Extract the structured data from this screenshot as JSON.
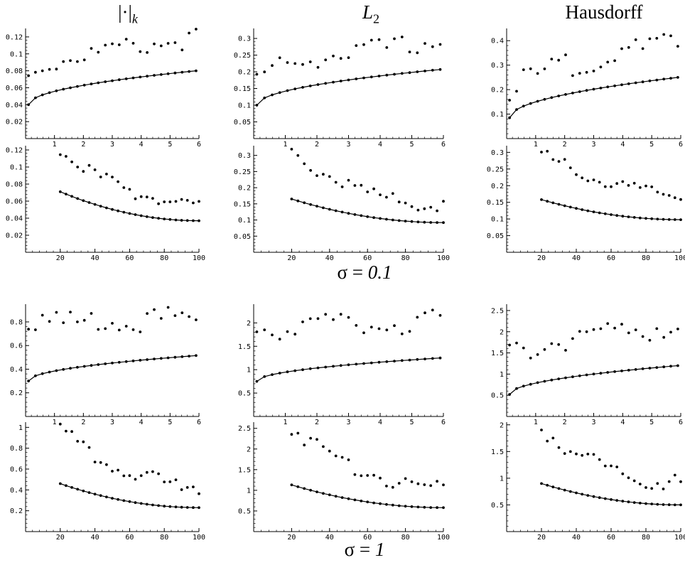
{
  "headings": {
    "col1_prefix": "|·|",
    "col1_sub": "k",
    "col2_prefix": "L",
    "col2_sub": "2",
    "col3": "Hausdorff"
  },
  "sigma_labels": [
    {
      "symbol": "σ = ",
      "value": "0.1"
    },
    {
      "symbol": "σ = ",
      "value": "1"
    }
  ],
  "chart_data": [
    {
      "type": "scatter",
      "panel": "sigma0.1-norm-k-top",
      "xlim": [
        0,
        6
      ],
      "ylim": [
        0,
        0.13
      ],
      "xticks": [
        1,
        2,
        3,
        4,
        5,
        6
      ],
      "yticks": [
        0.02,
        0.04,
        0.06,
        0.08,
        0.1,
        0.12
      ],
      "yticklabels": [
        "0.02",
        "0.04",
        "0.06",
        "0.08",
        "0.1",
        "0.12"
      ],
      "series": [
        {
          "style": "dots",
          "y0": 0.078,
          "y1": 0.124,
          "noise": 0.006
        },
        {
          "style": "line-dots",
          "y0": 0.04,
          "y1": 0.08
        }
      ]
    },
    {
      "type": "scatter",
      "panel": "sigma0.1-L2-top",
      "xlim": [
        0,
        6
      ],
      "ylim": [
        0,
        0.33
      ],
      "xticks": [
        1,
        2,
        3,
        4,
        5,
        6
      ],
      "yticks": [
        0.05,
        0.1,
        0.15,
        0.2,
        0.25,
        0.3
      ],
      "yticklabels": [
        "0.05",
        "0.1",
        "0.15",
        "0.2",
        "0.25",
        "0.3"
      ],
      "series": [
        {
          "style": "dots",
          "y0": 0.19,
          "y1": 0.305,
          "noise": 0.015
        },
        {
          "style": "line-dots",
          "y0": 0.1,
          "y1": 0.207
        }
      ]
    },
    {
      "type": "scatter",
      "panel": "sigma0.1-hausdorff-top",
      "xlim": [
        0,
        6
      ],
      "ylim": [
        0,
        0.45
      ],
      "xticks": [
        1,
        2,
        3,
        4,
        5,
        6
      ],
      "yticks": [
        0.1,
        0.2,
        0.3,
        0.4
      ],
      "yticklabels": [
        "0.1",
        "0.2",
        "0.3",
        "0.4"
      ],
      "series": [
        {
          "style": "dots",
          "y0": 0.2,
          "y1": 0.41,
          "noise": 0.025
        },
        {
          "style": "line-dots",
          "y0": 0.085,
          "y1": 0.25
        }
      ]
    },
    {
      "type": "scatter",
      "panel": "sigma0.1-norm-k-bottom",
      "xlim": [
        0,
        100
      ],
      "ylim": [
        0,
        0.125
      ],
      "xticks": [
        20,
        40,
        60,
        80,
        100
      ],
      "yticks": [
        0.02,
        0.04,
        0.06,
        0.08,
        0.1,
        0.12
      ],
      "yticklabels": [
        "0.02",
        "0.04",
        "0.06",
        "0.08",
        "0.1",
        "0.12"
      ],
      "series": [
        {
          "style": "dots",
          "y0": 0.122,
          "y1": 0.061,
          "noise": 0.004
        },
        {
          "style": "line-dots",
          "y0": 0.071,
          "y1": 0.037
        }
      ]
    },
    {
      "type": "scatter",
      "panel": "sigma0.1-L2-bottom",
      "xlim": [
        0,
        100
      ],
      "ylim": [
        0,
        0.33
      ],
      "xticks": [
        20,
        40,
        60,
        80,
        100
      ],
      "yticks": [
        0.05,
        0.1,
        0.15,
        0.2,
        0.25,
        0.3
      ],
      "yticklabels": [
        "0.05",
        "0.1",
        "0.15",
        "0.2",
        "0.25",
        "0.3"
      ],
      "series": [
        {
          "style": "dots",
          "y0": 0.315,
          "y1": 0.155,
          "noise": 0.01
        },
        {
          "style": "line-dots",
          "y0": 0.165,
          "y1": 0.092
        }
      ]
    },
    {
      "type": "scatter",
      "panel": "sigma0.1-hausdorff-bottom",
      "xlim": [
        0,
        100
      ],
      "ylim": [
        0,
        0.32
      ],
      "xticks": [
        20,
        40,
        60,
        80,
        100
      ],
      "yticks": [
        0.05,
        0.1,
        0.15,
        0.2,
        0.25,
        0.3
      ],
      "yticklabels": [
        "0.05",
        "0.1",
        "0.15",
        "0.2",
        "0.25",
        "0.3"
      ],
      "series": [
        {
          "style": "dots",
          "y0": 0.305,
          "y1": 0.185,
          "noise": 0.012
        },
        {
          "style": "line-dots",
          "y0": 0.158,
          "y1": 0.098
        }
      ]
    },
    {
      "type": "scatter",
      "panel": "sigma1-norm-k-top",
      "xlim": [
        0,
        6
      ],
      "ylim": [
        0,
        0.95
      ],
      "xticks": [
        1,
        2,
        3,
        4,
        5,
        6
      ],
      "yticks": [
        0.2,
        0.4,
        0.6,
        0.8
      ],
      "yticklabels": [
        "0.2",
        "0.4",
        "0.6",
        "0.8"
      ],
      "series": [
        {
          "style": "dots",
          "y0": 0.8,
          "y1": 0.88,
          "noise": 0.05
        },
        {
          "style": "line-dots",
          "y0": 0.3,
          "y1": 0.515
        }
      ]
    },
    {
      "type": "scatter",
      "panel": "sigma1-L2-top",
      "xlim": [
        0,
        6
      ],
      "ylim": [
        0,
        2.4
      ],
      "xticks": [
        1,
        2,
        3,
        4,
        5,
        6
      ],
      "yticks": [
        0.5,
        1,
        1.5,
        2
      ],
      "yticklabels": [
        "0.5",
        "1",
        "1.5",
        "2"
      ],
      "series": [
        {
          "style": "dots",
          "y0": 1.95,
          "y1": 2.15,
          "noise": 0.13
        },
        {
          "style": "line-dots",
          "y0": 0.75,
          "y1": 1.25
        }
      ]
    },
    {
      "type": "scatter",
      "panel": "sigma1-hausdorff-top",
      "xlim": [
        0,
        6
      ],
      "ylim": [
        0,
        2.65
      ],
      "xticks": [
        1,
        2,
        3,
        4,
        5,
        6
      ],
      "yticks": [
        0.5,
        1,
        1.5,
        2,
        2.5
      ],
      "yticklabels": [
        "0.5",
        "1",
        "1.5",
        "2",
        "2.5"
      ],
      "series": [
        {
          "style": "dots",
          "y0": 1.55,
          "y1": 2.3,
          "noise": 0.15
        },
        {
          "style": "line-dots",
          "y0": 0.52,
          "y1": 1.2
        }
      ]
    },
    {
      "type": "scatter",
      "panel": "sigma1-norm-k-bottom",
      "xlim": [
        0,
        100
      ],
      "ylim": [
        0,
        1.05
      ],
      "xticks": [
        20,
        40,
        60,
        80,
        100
      ],
      "yticks": [
        0.2,
        0.4,
        0.6,
        0.8,
        1
      ],
      "yticklabels": [
        "0.2",
        "0.4",
        "0.6",
        "0.8",
        "1"
      ],
      "series": [
        {
          "style": "dots",
          "y0": 1.02,
          "y1": 0.48,
          "noise": 0.04
        },
        {
          "style": "line-dots",
          "y0": 0.46,
          "y1": 0.23
        }
      ]
    },
    {
      "type": "scatter",
      "panel": "sigma1-L2-bottom",
      "xlim": [
        0,
        100
      ],
      "ylim": [
        0,
        2.65
      ],
      "xticks": [
        20,
        40,
        60,
        80,
        100
      ],
      "yticks": [
        0.5,
        1,
        1.5,
        2,
        2.5
      ],
      "yticklabels": [
        "0.5",
        "1",
        "1.5",
        "2",
        "2.5"
      ],
      "series": [
        {
          "style": "dots",
          "y0": 2.6,
          "y1": 1.2,
          "noise": 0.1
        },
        {
          "style": "line-dots",
          "y0": 1.13,
          "y1": 0.58
        }
      ]
    },
    {
      "type": "scatter",
      "panel": "sigma1-hausdorff-bottom",
      "xlim": [
        0,
        100
      ],
      "ylim": [
        0,
        2.05
      ],
      "xticks": [
        20,
        40,
        60,
        80,
        100
      ],
      "yticks": [
        0.5,
        1,
        1.5,
        2
      ],
      "yticklabels": [
        "0.5",
        "1",
        "1.5",
        "2"
      ],
      "series": [
        {
          "style": "dots",
          "y0": 2.0,
          "y1": 1.0,
          "noise": 0.08
        },
        {
          "style": "line-dots",
          "y0": 0.9,
          "y1": 0.5
        }
      ]
    }
  ]
}
